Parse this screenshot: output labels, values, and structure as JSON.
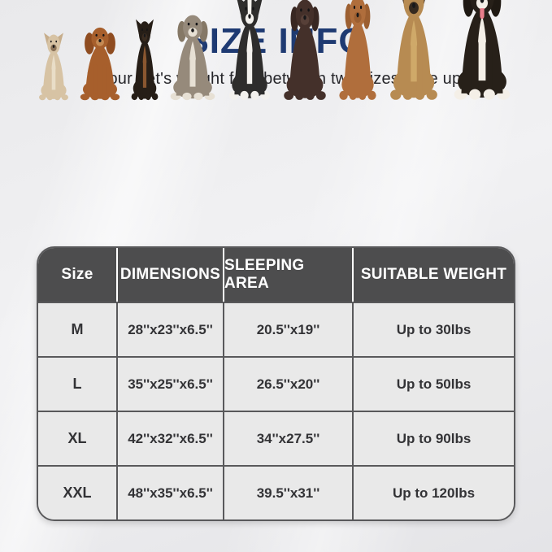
{
  "header": {
    "title": "SIZE INFO",
    "subtitle": "If your pet's weight falls between two sizes, size up.",
    "title_color": "#1e3a72"
  },
  "dogs": [
    {
      "name": "french-bulldog",
      "w": 46,
      "h": 85,
      "ears": "up",
      "colors": {
        "body": "#d7c3a4",
        "ear": "#c7ae8c",
        "muzzle": "#8a7258",
        "chest": "#e9ddc7"
      }
    },
    {
      "name": "cavalier-spaniel",
      "w": 62,
      "h": 94,
      "ears": "long",
      "colors": {
        "body": "#a75f2c",
        "ear": "#8f4c20",
        "muzzle": "#c58a54"
      }
    },
    {
      "name": "miniature-pinscher",
      "w": 42,
      "h": 102,
      "ears": "up",
      "colors": {
        "body": "#261e17",
        "ear": "#261e17",
        "muzzle": "#3a2c20",
        "chest": "#8a5730"
      }
    },
    {
      "name": "english-bulldog",
      "w": 70,
      "h": 110,
      "ears": "floppy",
      "colors": {
        "body": "#968a7b",
        "ear": "#857866",
        "muzzle": "#e7e0d4",
        "chest": "#e7e0d4",
        "paw": "#e7e0d4"
      }
    },
    {
      "name": "border-collie",
      "w": 64,
      "h": 132,
      "ears": "up",
      "colors": {
        "body": "#2e2d2c",
        "muzzle": "#f3f1ed",
        "chest": "#f3f1ed",
        "blaze": "#f3f1ed",
        "paw": "#f3f1ed"
      }
    },
    {
      "name": "chocolate-labrador",
      "w": 66,
      "h": 130,
      "ears": "floppy",
      "colors": {
        "body": "#44302a",
        "ear": "#382722",
        "muzzle": "#574038"
      }
    },
    {
      "name": "vizsla",
      "w": 58,
      "h": 134,
      "ears": "floppy",
      "colors": {
        "body": "#b06e3c",
        "ear": "#9c5f31",
        "muzzle": "#9c5f31"
      }
    },
    {
      "name": "german-shepherd",
      "w": 74,
      "h": 149,
      "ears": "up",
      "colors": {
        "body": "#b78b52",
        "ear": "#35291f",
        "muzzle": "#35291f",
        "chest": "#cfa969"
      }
    },
    {
      "name": "bernese-mountain-dog",
      "w": 88,
      "h": 157,
      "ears": "floppy",
      "colors": {
        "body": "#272019",
        "ear": "#1f1913",
        "muzzle": "#f4efe7",
        "chest": "#f4efe7",
        "blaze": "#f4efe7",
        "paw": "#f4efe7",
        "tongue": "#e97e8b"
      }
    }
  ],
  "table": {
    "header_bg": "#4d4d4e",
    "cell_bg": "#e9e9e9",
    "border_color": "#59595b",
    "columns": [
      "Size",
      "DIMENSIONS",
      "SLEEPING AREA",
      "SUITABLE WEIGHT"
    ],
    "rows": [
      {
        "size": "M",
        "dimensions": "28''x23''x6.5''",
        "sleeping_area": "20.5''x19''",
        "suitable_weight": "Up to 30lbs"
      },
      {
        "size": "L",
        "dimensions": "35''x25''x6.5''",
        "sleeping_area": "26.5''x20''",
        "suitable_weight": "Up to 50lbs"
      },
      {
        "size": "XL",
        "dimensions": "42''x32''x6.5''",
        "sleeping_area": "34''x27.5''",
        "suitable_weight": "Up to 90lbs"
      },
      {
        "size": "XXL",
        "dimensions": "48''x35''x6.5''",
        "sleeping_area": "39.5''x31''",
        "suitable_weight": "Up to 120lbs"
      }
    ]
  },
  "chart_data": {
    "type": "table",
    "title": "SIZE INFO",
    "subtitle": "If your pet's weight falls between two sizes, size up.",
    "columns": [
      "Size",
      "DIMENSIONS",
      "SLEEPING AREA",
      "SUITABLE WEIGHT"
    ],
    "rows": [
      [
        "M",
        "28''x23''x6.5''",
        "20.5''x19''",
        "Up to 30lbs"
      ],
      [
        "L",
        "35''x25''x6.5''",
        "26.5''x20''",
        "Up to 50lbs"
      ],
      [
        "XL",
        "42''x32''x6.5''",
        "34''x27.5''",
        "Up to 90lbs"
      ],
      [
        "XXL",
        "48''x35''x6.5''",
        "39.5''x31''",
        "Up to 120lbs"
      ]
    ]
  }
}
